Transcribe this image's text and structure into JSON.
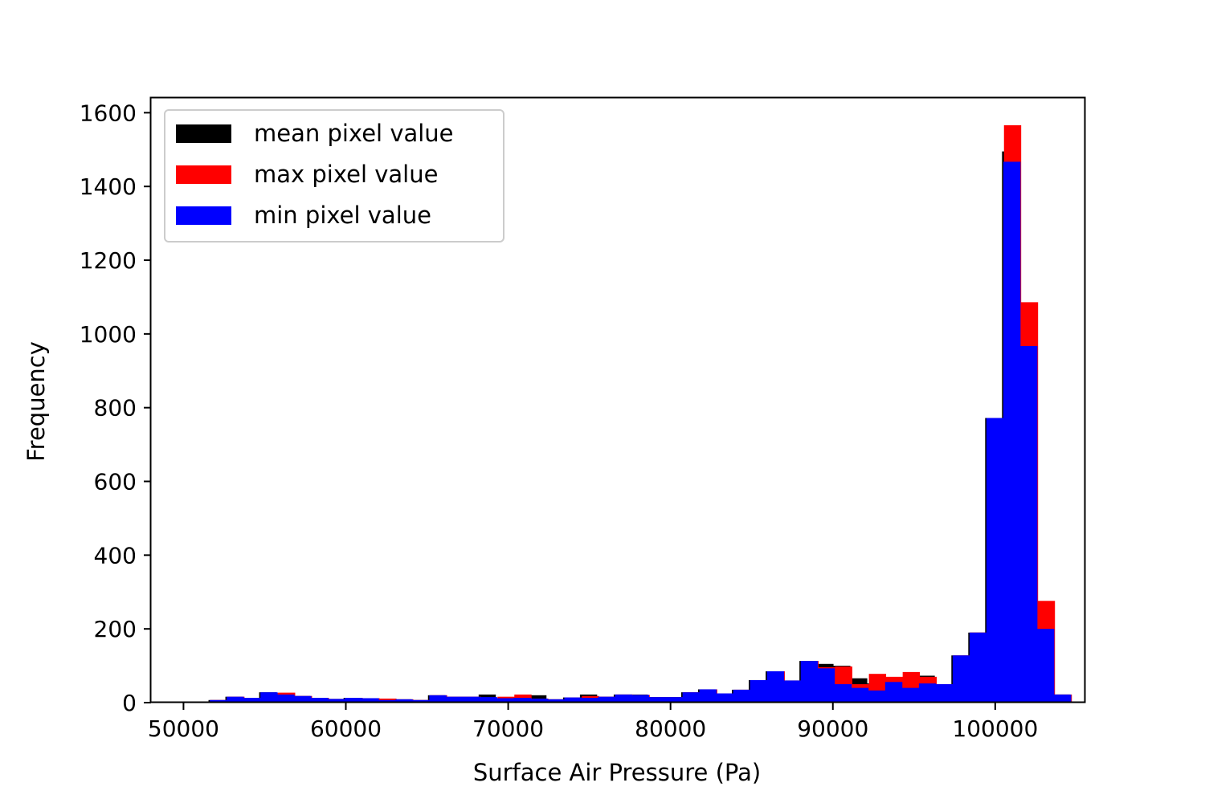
{
  "chart_data": {
    "type": "bar",
    "xlabel": "Surface Air Pressure (Pa)",
    "ylabel": "Frequency",
    "xlim": [
      48000,
      105500
    ],
    "ylim": [
      0,
      1640
    ],
    "x_ticks": [
      50000,
      60000,
      70000,
      80000,
      90000,
      100000
    ],
    "y_ticks": [
      0,
      200,
      400,
      600,
      800,
      1000,
      1200,
      1400,
      1600
    ],
    "x_tick_labels": [
      "50000",
      "60000",
      "70000",
      "80000",
      "90000",
      "100000"
    ],
    "y_tick_labels": [
      "0",
      "200",
      "400",
      "600",
      "800",
      "1000",
      "1200",
      "1400",
      "1600"
    ],
    "grid": false,
    "legend_position": "top-left",
    "series": [
      {
        "name": "mean pixel value",
        "color": "#000000",
        "bin_start": 50500,
        "bin_width": 1040,
        "values": [
          2,
          7,
          16,
          13,
          28,
          24,
          18,
          13,
          10,
          13,
          12,
          9,
          9,
          7,
          20,
          16,
          16,
          22,
          12,
          13,
          20,
          9,
          14,
          22,
          16,
          22,
          22,
          15,
          15,
          28,
          36,
          25,
          35,
          61,
          85,
          60,
          113,
          105,
          100,
          66,
          52,
          58,
          56,
          73,
          50,
          128,
          190,
          772,
          1495,
          1082,
          274,
          22
        ]
      },
      {
        "name": "max pixel value",
        "color": "#ff0000",
        "bin_start": 50620,
        "bin_width": 1040,
        "values": [
          2,
          7,
          16,
          13,
          26,
          27,
          18,
          13,
          10,
          13,
          12,
          11,
          9,
          7,
          20,
          16,
          16,
          12,
          16,
          22,
          11,
          9,
          14,
          18,
          16,
          22,
          21,
          15,
          15,
          28,
          36,
          25,
          35,
          61,
          85,
          60,
          113,
          96,
          98,
          50,
          78,
          70,
          83,
          70,
          50,
          128,
          190,
          772,
          1566,
          1086,
          276,
          22
        ]
      },
      {
        "name": "min pixel value",
        "color": "#0000ff",
        "bin_start": 50580,
        "bin_width": 1040,
        "values": [
          2,
          7,
          16,
          13,
          28,
          22,
          18,
          13,
          10,
          13,
          12,
          7,
          9,
          7,
          20,
          16,
          16,
          15,
          12,
          13,
          11,
          9,
          14,
          13,
          16,
          22,
          21,
          15,
          15,
          28,
          36,
          25,
          35,
          61,
          85,
          60,
          113,
          93,
          50,
          40,
          33,
          56,
          40,
          52,
          50,
          128,
          190,
          772,
          1467,
          967,
          200,
          22
        ]
      }
    ]
  }
}
